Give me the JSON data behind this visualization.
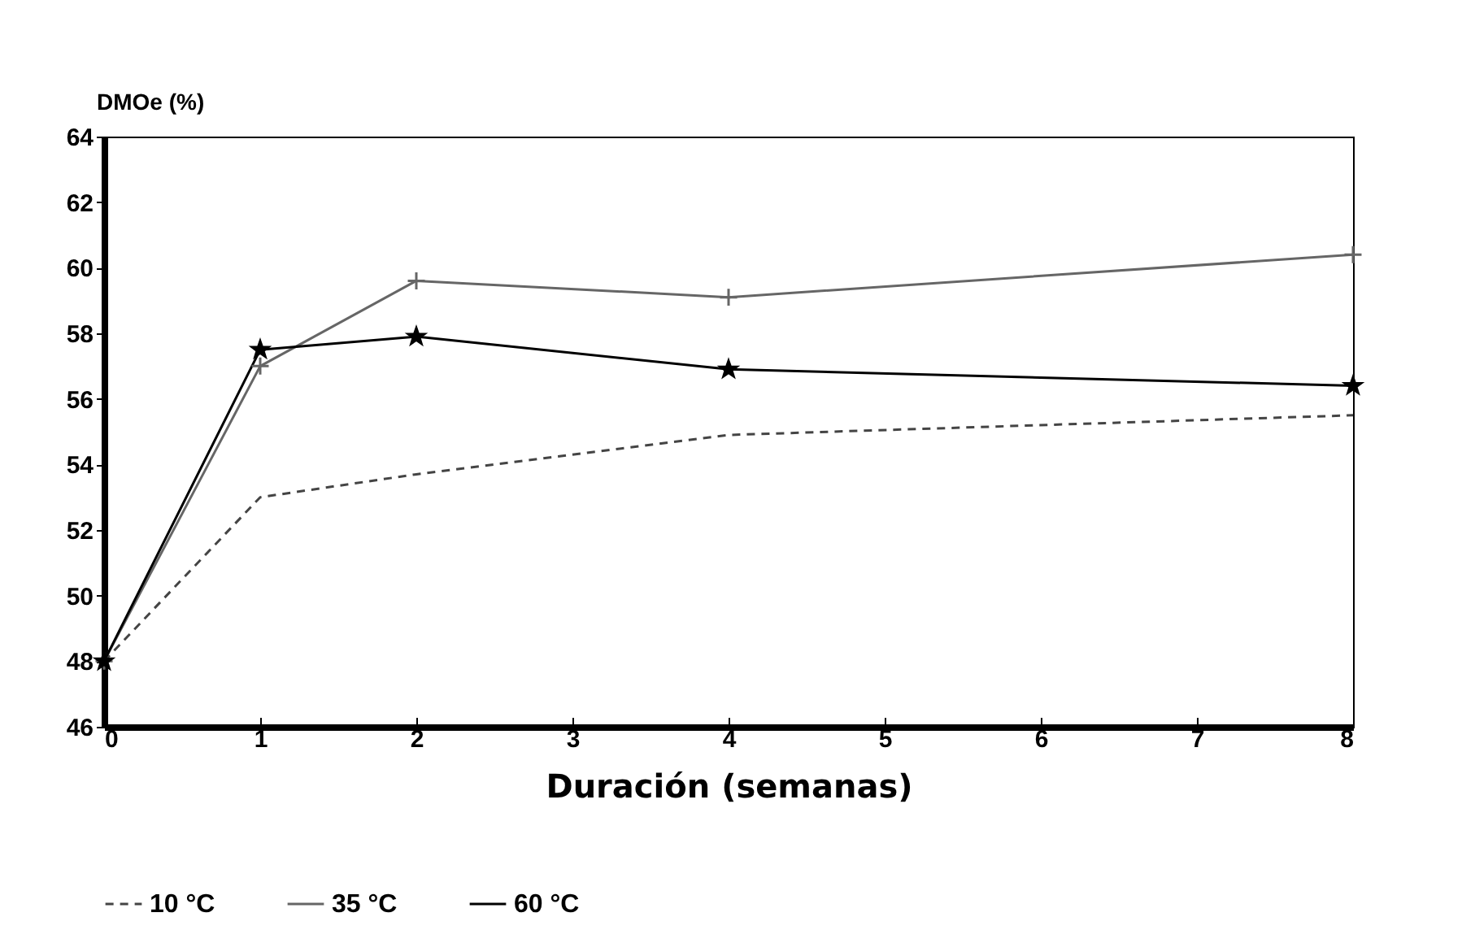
{
  "chart_data": {
    "type": "line",
    "xlabel": "Duración (semanas)",
    "ylabel": "DMOe (%)",
    "x": [
      0,
      1,
      2,
      4,
      8
    ],
    "series": [
      {
        "name": "10 °C",
        "color": "#444444",
        "line_style": "dashed",
        "marker": "none",
        "values": [
          48,
          53,
          53.7,
          54.9,
          55.5
        ]
      },
      {
        "name": "35 °C",
        "color": "#666666",
        "line_style": "solid",
        "marker": "cross",
        "values": [
          48,
          57,
          59.6,
          59.1,
          60.4
        ]
      },
      {
        "name": "60 °C",
        "color": "#000000",
        "line_style": "solid",
        "marker": "star",
        "values": [
          48,
          57.5,
          57.9,
          56.9,
          56.4
        ]
      }
    ],
    "xlim": [
      0,
      8
    ],
    "xticks": [
      0,
      1,
      2,
      3,
      4,
      5,
      6,
      7,
      8
    ],
    "ylim": [
      46,
      64
    ],
    "yticks": [
      46,
      48,
      50,
      52,
      54,
      56,
      58,
      60,
      62,
      64
    ],
    "grid": false,
    "legend": "bottom"
  }
}
